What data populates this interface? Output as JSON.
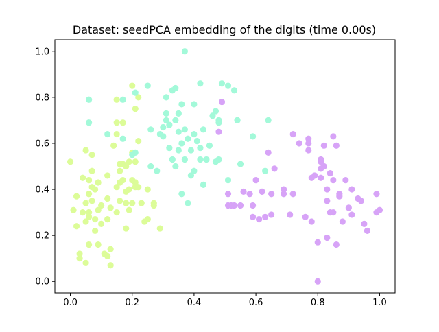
{
  "chart_data": {
    "type": "scatter",
    "title": "Dataset: seedPCA embedding of the digits (time 0.00s)",
    "xlabel": "",
    "ylabel": "",
    "xlim": [
      -0.05,
      1.05
    ],
    "ylim": [
      -0.05,
      1.05
    ],
    "x_ticks": [
      0.0,
      0.2,
      0.4,
      0.6,
      0.8,
      1.0
    ],
    "y_ticks": [
      0.0,
      0.2,
      0.4,
      0.6,
      0.8,
      1.0
    ],
    "x_tick_labels": [
      "0.0",
      "0.2",
      "0.4",
      "0.6",
      "0.8",
      "1.0"
    ],
    "y_tick_labels": [
      "0.0",
      "0.2",
      "0.4",
      "0.6",
      "0.8",
      "1.0"
    ],
    "grid": false,
    "legend": "none",
    "series": [
      {
        "color": "#dcfc98",
        "points": [
          [
            0.0,
            0.52
          ],
          [
            0.01,
            0.31
          ],
          [
            0.02,
            0.24
          ],
          [
            0.02,
            0.37
          ],
          [
            0.03,
            0.12
          ],
          [
            0.03,
            0.1
          ],
          [
            0.04,
            0.45
          ],
          [
            0.04,
            0.3
          ],
          [
            0.05,
            0.34
          ],
          [
            0.05,
            0.57
          ],
          [
            0.05,
            0.26
          ],
          [
            0.05,
            0.08
          ],
          [
            0.06,
            0.44
          ],
          [
            0.06,
            0.38
          ],
          [
            0.06,
            0.3
          ],
          [
            0.06,
            0.16
          ],
          [
            0.06,
            0.28
          ],
          [
            0.07,
            0.41
          ],
          [
            0.07,
            0.48
          ],
          [
            0.07,
            0.35
          ],
          [
            0.07,
            0.55
          ],
          [
            0.08,
            0.27
          ],
          [
            0.08,
            0.22
          ],
          [
            0.08,
            0.4
          ],
          [
            0.09,
            0.31
          ],
          [
            0.09,
            0.16
          ],
          [
            0.09,
            0.43
          ],
          [
            0.1,
            0.33
          ],
          [
            0.1,
            0.25
          ],
          [
            0.11,
            0.12
          ],
          [
            0.12,
            0.46
          ],
          [
            0.12,
            0.36
          ],
          [
            0.12,
            0.27
          ],
          [
            0.12,
            0.11
          ],
          [
            0.13,
            0.14
          ],
          [
            0.13,
            0.32
          ],
          [
            0.13,
            0.07
          ],
          [
            0.14,
            0.59
          ],
          [
            0.15,
            0.3
          ],
          [
            0.15,
            0.41
          ],
          [
            0.15,
            0.69
          ],
          [
            0.15,
            0.64
          ],
          [
            0.15,
            0.79
          ],
          [
            0.16,
            0.51
          ],
          [
            0.16,
            0.48
          ],
          [
            0.16,
            0.43
          ],
          [
            0.16,
            0.35
          ],
          [
            0.17,
            0.44
          ],
          [
            0.17,
            0.69
          ],
          [
            0.17,
            0.51
          ],
          [
            0.18,
            0.39
          ],
          [
            0.18,
            0.34
          ],
          [
            0.18,
            0.23
          ],
          [
            0.18,
            0.5
          ],
          [
            0.19,
            0.31
          ],
          [
            0.19,
            0.52
          ],
          [
            0.19,
            0.4
          ],
          [
            0.2,
            0.44
          ],
          [
            0.2,
            0.56
          ],
          [
            0.2,
            0.85
          ],
          [
            0.2,
            0.34
          ],
          [
            0.21,
            0.41
          ],
          [
            0.21,
            0.43
          ],
          [
            0.21,
            0.52
          ],
          [
            0.21,
            0.75
          ],
          [
            0.22,
            0.8
          ],
          [
            0.22,
            0.61
          ],
          [
            0.22,
            0.41
          ],
          [
            0.23,
            0.34
          ],
          [
            0.24,
            0.26
          ],
          [
            0.25,
            0.4
          ],
          [
            0.25,
            0.27
          ],
          [
            0.27,
            0.34
          ],
          [
            0.27,
            0.33
          ],
          [
            0.29,
            0.23
          ]
        ]
      },
      {
        "color": "#a3f9d9",
        "points": [
          [
            0.06,
            0.79
          ],
          [
            0.06,
            0.69
          ],
          [
            0.12,
            0.64
          ],
          [
            0.17,
            0.62
          ],
          [
            0.17,
            0.79
          ],
          [
            0.2,
            0.55
          ],
          [
            0.21,
            0.56
          ],
          [
            0.21,
            0.82
          ],
          [
            0.25,
            0.85
          ],
          [
            0.26,
            0.66
          ],
          [
            0.26,
            0.5
          ],
          [
            0.28,
            0.48
          ],
          [
            0.29,
            0.64
          ],
          [
            0.3,
            0.67
          ],
          [
            0.3,
            0.63
          ],
          [
            0.31,
            0.73
          ],
          [
            0.31,
            0.7
          ],
          [
            0.31,
            0.8
          ],
          [
            0.32,
            0.68
          ],
          [
            0.32,
            0.58
          ],
          [
            0.33,
            0.53
          ],
          [
            0.33,
            0.83
          ],
          [
            0.34,
            0.7
          ],
          [
            0.34,
            0.84
          ],
          [
            0.34,
            0.5
          ],
          [
            0.35,
            0.57
          ],
          [
            0.35,
            0.65
          ],
          [
            0.35,
            0.73
          ],
          [
            0.36,
            0.77
          ],
          [
            0.36,
            0.6
          ],
          [
            0.36,
            0.38
          ],
          [
            0.37,
            1.0
          ],
          [
            0.37,
            0.66
          ],
          [
            0.37,
            0.53
          ],
          [
            0.38,
            0.34
          ],
          [
            0.38,
            0.62
          ],
          [
            0.39,
            0.57
          ],
          [
            0.39,
            0.46
          ],
          [
            0.4,
            0.64
          ],
          [
            0.4,
            0.77
          ],
          [
            0.4,
            0.48
          ],
          [
            0.41,
            0.61
          ],
          [
            0.42,
            0.53
          ],
          [
            0.42,
            0.86
          ],
          [
            0.42,
            0.58
          ],
          [
            0.43,
            0.42
          ],
          [
            0.43,
            0.66
          ],
          [
            0.44,
            0.53
          ],
          [
            0.45,
            0.59
          ],
          [
            0.46,
            0.72
          ],
          [
            0.47,
            0.74
          ],
          [
            0.47,
            0.52
          ],
          [
            0.48,
            0.69
          ],
          [
            0.48,
            0.53
          ],
          [
            0.49,
            0.86
          ],
          [
            0.51,
            0.85
          ],
          [
            0.51,
            0.44
          ],
          [
            0.53,
            0.83
          ],
          [
            0.54,
            0.7
          ],
          [
            0.54,
            0.7
          ],
          [
            0.55,
            0.51
          ],
          [
            0.59,
            0.63
          ],
          [
            0.63,
            0.48
          ],
          [
            0.64,
            0.7
          ],
          [
            0.48,
            0.7
          ]
        ]
      },
      {
        "color": "#d7a3f7",
        "points": [
          [
            0.48,
            0.65
          ],
          [
            0.49,
            0.78
          ],
          [
            0.51,
            0.33
          ],
          [
            0.51,
            0.38
          ],
          [
            0.52,
            0.33
          ],
          [
            0.53,
            0.33
          ],
          [
            0.55,
            0.33
          ],
          [
            0.56,
            0.39
          ],
          [
            0.58,
            0.38
          ],
          [
            0.59,
            0.28
          ],
          [
            0.59,
            0.33
          ],
          [
            0.6,
            0.44
          ],
          [
            0.61,
            0.27
          ],
          [
            0.62,
            0.39
          ],
          [
            0.63,
            0.28
          ],
          [
            0.64,
            0.56
          ],
          [
            0.65,
            0.29
          ],
          [
            0.65,
            0.38
          ],
          [
            0.66,
            0.49
          ],
          [
            0.69,
            0.4
          ],
          [
            0.69,
            0.38
          ],
          [
            0.71,
            0.29
          ],
          [
            0.72,
            0.38
          ],
          [
            0.72,
            0.64
          ],
          [
            0.74,
            0.6
          ],
          [
            0.76,
            0.28
          ],
          [
            0.77,
            0.62
          ],
          [
            0.77,
            0.6
          ],
          [
            0.77,
            0.57
          ],
          [
            0.78,
            0.26
          ],
          [
            0.78,
            0.45
          ],
          [
            0.79,
            0.46
          ],
          [
            0.8,
            0.17
          ],
          [
            0.8,
            0.0
          ],
          [
            0.81,
            0.49
          ],
          [
            0.81,
            0.45
          ],
          [
            0.81,
            0.52
          ],
          [
            0.81,
            0.53
          ],
          [
            0.82,
            0.59
          ],
          [
            0.82,
            0.5
          ],
          [
            0.83,
            0.4
          ],
          [
            0.83,
            0.35
          ],
          [
            0.83,
            0.19
          ],
          [
            0.84,
            0.3
          ],
          [
            0.84,
            0.47
          ],
          [
            0.85,
            0.63
          ],
          [
            0.85,
            0.3
          ],
          [
            0.85,
            0.44
          ],
          [
            0.86,
            0.59
          ],
          [
            0.86,
            0.16
          ],
          [
            0.87,
            0.37
          ],
          [
            0.87,
            0.38
          ],
          [
            0.88,
            0.26
          ],
          [
            0.89,
            0.44
          ],
          [
            0.9,
            0.32
          ],
          [
            0.91,
            0.29
          ],
          [
            0.91,
            0.4
          ],
          [
            0.93,
            0.36
          ],
          [
            0.94,
            0.35
          ],
          [
            0.95,
            0.25
          ],
          [
            0.96,
            0.22
          ],
          [
            0.99,
            0.38
          ],
          [
            0.99,
            0.3
          ],
          [
            1.0,
            0.31
          ]
        ]
      }
    ]
  }
}
